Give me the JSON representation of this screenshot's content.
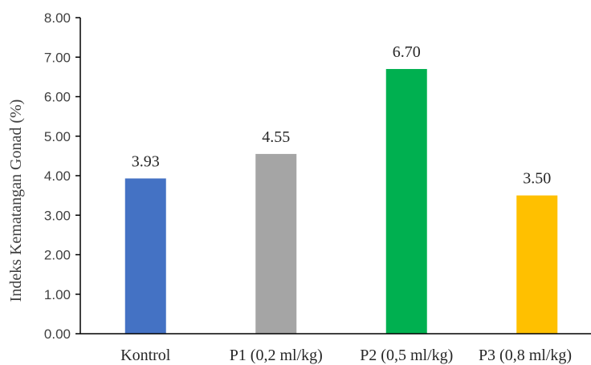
{
  "chart_data": {
    "type": "bar",
    "categories": [
      "Kontrol",
      "P1 (0,2 ml/kg)",
      "P2 (0,5 ml/kg)",
      "P3 (0,8 ml/kg)"
    ],
    "values": [
      3.93,
      4.55,
      6.7,
      3.5
    ],
    "data_labels": [
      "3.93",
      "4.55",
      "6.70",
      "3.50"
    ],
    "colors": [
      "#4472C4",
      "#A5A5A5",
      "#00B050",
      "#FFC000"
    ],
    "ylabel": "Indeks Kematangan Gonad (%)",
    "xlabel": "",
    "ylim": [
      0,
      8
    ],
    "yticks": [
      "0.00",
      "1.00",
      "2.00",
      "3.00",
      "4.00",
      "5.00",
      "6.00",
      "7.00",
      "8.00"
    ],
    "grid": false,
    "legend": "none"
  }
}
